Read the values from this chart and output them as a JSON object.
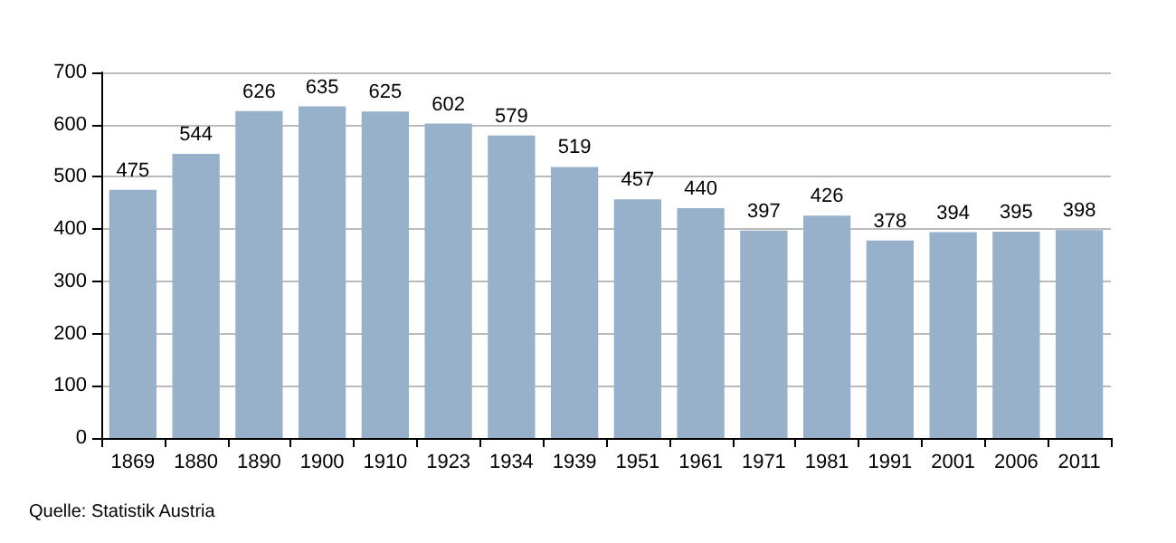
{
  "chart_data": {
    "type": "bar",
    "categories": [
      "1869",
      "1880",
      "1890",
      "1900",
      "1910",
      "1923",
      "1934",
      "1939",
      "1951",
      "1961",
      "1971",
      "1981",
      "1991",
      "2001",
      "2006",
      "2011"
    ],
    "values": [
      475,
      544,
      626,
      635,
      625,
      602,
      579,
      519,
      457,
      440,
      397,
      426,
      378,
      394,
      395,
      398
    ],
    "color": "#97b1cb",
    "ylim": [
      0,
      700
    ],
    "yticks": [
      0,
      100,
      200,
      300,
      400,
      500,
      600,
      700
    ],
    "grid": "y",
    "data_labels": true,
    "annotations": [
      "Quelle: Statistik Austria"
    ]
  }
}
